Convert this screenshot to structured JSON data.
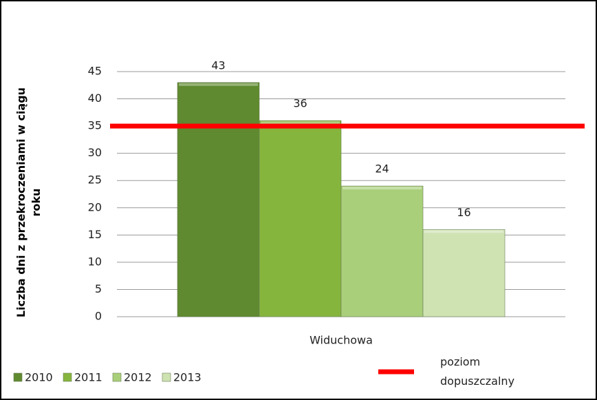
{
  "chart_data": {
    "type": "bar",
    "ylabel": "Liczba dni z przekroczeniami w ciągu roku",
    "categories": [
      "Widuchowa"
    ],
    "series": [
      {
        "name": "2010",
        "color": "#5f8a2f",
        "values": [
          43
        ]
      },
      {
        "name": "2011",
        "color": "#86b53e",
        "values": [
          36
        ]
      },
      {
        "name": "2012",
        "color": "#a9cf7a",
        "values": [
          24
        ]
      },
      {
        "name": "2013",
        "color": "#cfe2b2",
        "values": [
          16
        ]
      },
      {
        "name": "poziom dopuszczalny",
        "type": "line",
        "color": "#ff0000",
        "values": [
          35
        ]
      }
    ],
    "ylim": [
      0,
      45
    ],
    "yticks": [
      0,
      5,
      10,
      15,
      20,
      25,
      30,
      35,
      40,
      45
    ],
    "grid": true
  }
}
